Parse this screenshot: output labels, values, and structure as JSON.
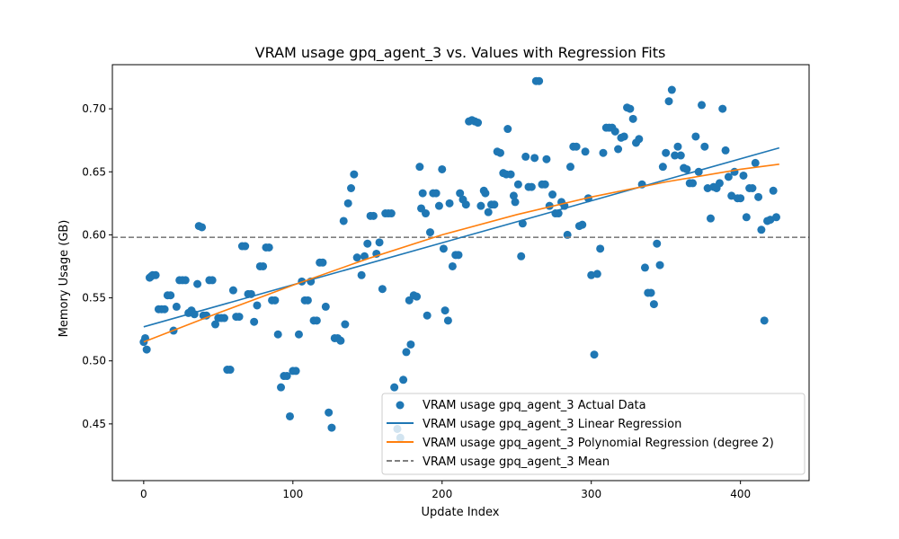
{
  "chart_data": {
    "type": "scatter",
    "title": "VRAM usage gpq_agent_3 vs. Values with Regression Fits",
    "xlabel": "Update Index",
    "ylabel": "Memory Usage (GB)",
    "xlim": [
      -21,
      446
    ],
    "ylim": [
      0.405,
      0.735
    ],
    "x_ticks": [
      0,
      100,
      200,
      300,
      400
    ],
    "y_ticks": [
      0.45,
      0.5,
      0.55,
      0.6,
      0.65,
      0.7
    ],
    "y_tick_labels": [
      "0.45",
      "0.50",
      "0.55",
      "0.60",
      "0.65",
      "0.70"
    ],
    "grid": false,
    "legend_position": "lower-right",
    "colors": {
      "scatter": "#1f77b4",
      "linear": "#1f77b4",
      "poly": "#ff7f0e",
      "mean": "#7f7f7f"
    },
    "series": [
      {
        "name": "VRAM usage gpq_agent_3 Actual Data",
        "kind": "scatter",
        "points": [
          [
            0,
            0.515
          ],
          [
            1,
            0.518
          ],
          [
            2,
            0.509
          ],
          [
            4,
            0.566
          ],
          [
            5,
            0.567
          ],
          [
            6,
            0.568
          ],
          [
            8,
            0.568
          ],
          [
            10,
            0.541
          ],
          [
            12,
            0.541
          ],
          [
            14,
            0.541
          ],
          [
            16,
            0.552
          ],
          [
            18,
            0.552
          ],
          [
            20,
            0.524
          ],
          [
            22,
            0.543
          ],
          [
            24,
            0.564
          ],
          [
            26,
            0.564
          ],
          [
            28,
            0.564
          ],
          [
            30,
            0.538
          ],
          [
            32,
            0.54
          ],
          [
            34,
            0.537
          ],
          [
            36,
            0.561
          ],
          [
            37,
            0.607
          ],
          [
            39,
            0.606
          ],
          [
            40,
            0.536
          ],
          [
            42,
            0.536
          ],
          [
            44,
            0.564
          ],
          [
            46,
            0.564
          ],
          [
            48,
            0.529
          ],
          [
            50,
            0.534
          ],
          [
            52,
            0.534
          ],
          [
            54,
            0.534
          ],
          [
            56,
            0.493
          ],
          [
            58,
            0.493
          ],
          [
            60,
            0.556
          ],
          [
            62,
            0.535
          ],
          [
            64,
            0.535
          ],
          [
            66,
            0.591
          ],
          [
            68,
            0.591
          ],
          [
            70,
            0.553
          ],
          [
            72,
            0.553
          ],
          [
            74,
            0.531
          ],
          [
            76,
            0.544
          ],
          [
            78,
            0.575
          ],
          [
            80,
            0.575
          ],
          [
            82,
            0.59
          ],
          [
            84,
            0.59
          ],
          [
            86,
            0.548
          ],
          [
            88,
            0.548
          ],
          [
            90,
            0.521
          ],
          [
            92,
            0.479
          ],
          [
            94,
            0.488
          ],
          [
            96,
            0.488
          ],
          [
            98,
            0.456
          ],
          [
            100,
            0.492
          ],
          [
            102,
            0.492
          ],
          [
            104,
            0.521
          ],
          [
            106,
            0.563
          ],
          [
            108,
            0.548
          ],
          [
            110,
            0.548
          ],
          [
            112,
            0.563
          ],
          [
            114,
            0.532
          ],
          [
            116,
            0.532
          ],
          [
            118,
            0.578
          ],
          [
            120,
            0.578
          ],
          [
            122,
            0.543
          ],
          [
            124,
            0.459
          ],
          [
            126,
            0.447
          ],
          [
            128,
            0.518
          ],
          [
            130,
            0.518
          ],
          [
            132,
            0.516
          ],
          [
            134,
            0.611
          ],
          [
            135,
            0.529
          ],
          [
            137,
            0.625
          ],
          [
            139,
            0.637
          ],
          [
            141,
            0.648
          ],
          [
            143,
            0.582
          ],
          [
            146,
            0.568
          ],
          [
            148,
            0.583
          ],
          [
            150,
            0.593
          ],
          [
            152,
            0.615
          ],
          [
            154,
            0.615
          ],
          [
            156,
            0.585
          ],
          [
            158,
            0.594
          ],
          [
            160,
            0.557
          ],
          [
            162,
            0.617
          ],
          [
            164,
            0.617
          ],
          [
            166,
            0.617
          ],
          [
            168,
            0.479
          ],
          [
            170,
            0.446
          ],
          [
            172,
            0.439
          ],
          [
            174,
            0.485
          ],
          [
            176,
            0.507
          ],
          [
            178,
            0.548
          ],
          [
            179,
            0.513
          ],
          [
            181,
            0.552
          ],
          [
            183,
            0.551
          ],
          [
            185,
            0.654
          ],
          [
            186,
            0.621
          ],
          [
            187,
            0.633
          ],
          [
            189,
            0.617
          ],
          [
            190,
            0.536
          ],
          [
            192,
            0.602
          ],
          [
            194,
            0.633
          ],
          [
            196,
            0.633
          ],
          [
            198,
            0.623
          ],
          [
            200,
            0.652
          ],
          [
            201,
            0.589
          ],
          [
            202,
            0.54
          ],
          [
            204,
            0.532
          ],
          [
            205,
            0.625
          ],
          [
            207,
            0.575
          ],
          [
            209,
            0.584
          ],
          [
            211,
            0.584
          ],
          [
            212,
            0.633
          ],
          [
            214,
            0.628
          ],
          [
            216,
            0.624
          ],
          [
            218,
            0.69
          ],
          [
            220,
            0.691
          ],
          [
            222,
            0.69
          ],
          [
            224,
            0.689
          ],
          [
            226,
            0.623
          ],
          [
            228,
            0.635
          ],
          [
            229,
            0.633
          ],
          [
            231,
            0.618
          ],
          [
            233,
            0.624
          ],
          [
            235,
            0.624
          ],
          [
            237,
            0.666
          ],
          [
            239,
            0.665
          ],
          [
            241,
            0.649
          ],
          [
            243,
            0.648
          ],
          [
            244,
            0.684
          ],
          [
            246,
            0.648
          ],
          [
            248,
            0.631
          ],
          [
            249,
            0.626
          ],
          [
            251,
            0.64
          ],
          [
            253,
            0.583
          ],
          [
            254,
            0.609
          ],
          [
            256,
            0.662
          ],
          [
            258,
            0.638
          ],
          [
            260,
            0.638
          ],
          [
            262,
            0.661
          ],
          [
            263,
            0.722
          ],
          [
            265,
            0.722
          ],
          [
            267,
            0.64
          ],
          [
            269,
            0.64
          ],
          [
            270,
            0.66
          ],
          [
            272,
            0.623
          ],
          [
            274,
            0.632
          ],
          [
            276,
            0.617
          ],
          [
            278,
            0.617
          ],
          [
            280,
            0.626
          ],
          [
            282,
            0.623
          ],
          [
            284,
            0.6
          ],
          [
            286,
            0.654
          ],
          [
            288,
            0.67
          ],
          [
            290,
            0.67
          ],
          [
            292,
            0.607
          ],
          [
            294,
            0.608
          ],
          [
            296,
            0.666
          ],
          [
            298,
            0.629
          ],
          [
            300,
            0.568
          ],
          [
            302,
            0.505
          ],
          [
            304,
            0.569
          ],
          [
            306,
            0.589
          ],
          [
            308,
            0.665
          ],
          [
            310,
            0.685
          ],
          [
            312,
            0.685
          ],
          [
            314,
            0.685
          ],
          [
            316,
            0.682
          ],
          [
            318,
            0.668
          ],
          [
            320,
            0.677
          ],
          [
            322,
            0.678
          ],
          [
            324,
            0.701
          ],
          [
            326,
            0.7
          ],
          [
            328,
            0.692
          ],
          [
            330,
            0.673
          ],
          [
            332,
            0.676
          ],
          [
            334,
            0.64
          ],
          [
            336,
            0.574
          ],
          [
            338,
            0.554
          ],
          [
            340,
            0.554
          ],
          [
            342,
            0.545
          ],
          [
            344,
            0.593
          ],
          [
            346,
            0.576
          ],
          [
            348,
            0.654
          ],
          [
            350,
            0.665
          ],
          [
            352,
            0.706
          ],
          [
            354,
            0.715
          ],
          [
            356,
            0.663
          ],
          [
            358,
            0.67
          ],
          [
            360,
            0.663
          ],
          [
            362,
            0.653
          ],
          [
            364,
            0.652
          ],
          [
            366,
            0.641
          ],
          [
            368,
            0.641
          ],
          [
            370,
            0.678
          ],
          [
            372,
            0.65
          ],
          [
            374,
            0.703
          ],
          [
            376,
            0.67
          ],
          [
            378,
            0.637
          ],
          [
            380,
            0.613
          ],
          [
            382,
            0.638
          ],
          [
            384,
            0.637
          ],
          [
            386,
            0.641
          ],
          [
            388,
            0.7
          ],
          [
            390,
            0.667
          ],
          [
            392,
            0.646
          ],
          [
            394,
            0.631
          ],
          [
            396,
            0.65
          ],
          [
            398,
            0.629
          ],
          [
            400,
            0.629
          ],
          [
            402,
            0.647
          ],
          [
            404,
            0.614
          ],
          [
            406,
            0.637
          ],
          [
            408,
            0.637
          ],
          [
            410,
            0.657
          ],
          [
            412,
            0.63
          ],
          [
            414,
            0.604
          ],
          [
            416,
            0.532
          ],
          [
            418,
            0.611
          ],
          [
            420,
            0.612
          ],
          [
            422,
            0.635
          ],
          [
            424,
            0.614
          ]
        ]
      },
      {
        "name": "VRAM usage gpq_agent_3 Linear Regression",
        "kind": "line",
        "x": [
          0,
          426
        ],
        "y": [
          0.527,
          0.669
        ]
      },
      {
        "name": "VRAM usage gpq_agent_3 Polynomial Regression (degree 2)",
        "kind": "line",
        "x": [
          0,
          50,
          100,
          150,
          200,
          250,
          300,
          350,
          400,
          426
        ],
        "y": [
          0.515,
          0.538,
          0.56,
          0.581,
          0.6,
          0.616,
          0.63,
          0.642,
          0.652,
          0.656
        ]
      },
      {
        "name": "VRAM usage gpq_agent_3 Mean",
        "kind": "hline",
        "y": 0.598
      }
    ]
  }
}
